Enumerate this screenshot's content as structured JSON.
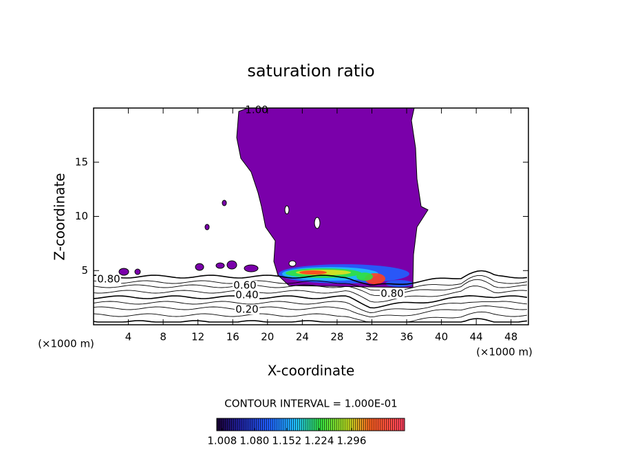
{
  "chart_data": {
    "type": "contour",
    "title": "saturation ratio",
    "x_label": "X-coordinate",
    "y_label": "Z-coordinate",
    "x_unit": "(×1000 m)",
    "y_unit": "(×1000 m)",
    "xlim": [
      0,
      50
    ],
    "ylim": [
      0,
      20
    ],
    "xticks": [
      4,
      8,
      12,
      16,
      20,
      24,
      28,
      32,
      36,
      40,
      44,
      48
    ],
    "yticks": [
      5,
      10,
      15
    ],
    "fill_color": "#7a00aa",
    "contour_labels": [
      {
        "value": 1,
        "label": "1.00"
      },
      {
        "value": 0.8,
        "label": "0.80"
      },
      {
        "value": 0.6,
        "label": "0.60"
      },
      {
        "value": 0.4,
        "label": "0.40"
      },
      {
        "value": 0.2,
        "label": "0.20"
      },
      {
        "value": 0.8,
        "label": "0.80"
      }
    ],
    "contour_interval": "CONTOUR INTERVAL = 1.000E-01",
    "colorbar_lim": [
      0.996,
      1.414
    ],
    "colorbar_ticks": [
      1.008,
      {
        "value": 1.08,
        "label": "1.080"
      },
      1.152,
      1.224,
      1.296
    ]
  }
}
